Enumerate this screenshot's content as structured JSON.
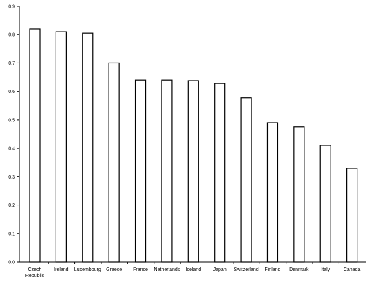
{
  "chart_data": {
    "type": "bar",
    "categories": [
      [
        "Czech",
        "Republic"
      ],
      [
        "Ireland"
      ],
      [
        "Luxembourg"
      ],
      [
        "Greece"
      ],
      [
        "France"
      ],
      [
        "Netherlands"
      ],
      [
        "Iceland"
      ],
      [
        "Japan"
      ],
      [
        "Switzerland"
      ],
      [
        "Finland"
      ],
      [
        "Denmark"
      ],
      [
        "Italy"
      ],
      [
        "Canada"
      ]
    ],
    "values": [
      0.82,
      0.81,
      0.805,
      0.7,
      0.64,
      0.64,
      0.638,
      0.628,
      0.578,
      0.49,
      0.476,
      0.41,
      0.33
    ],
    "title": "",
    "xlabel": "",
    "ylabel": "",
    "ylim": [
      0,
      0.9
    ],
    "yticks": [
      "0.0",
      "0.1",
      "0.2",
      "0.3",
      "0.4",
      "0.5",
      "0.6",
      "0.7",
      "0.8",
      "0.9"
    ],
    "grid": false,
    "bar_fill": "#ffffff",
    "bar_stroke": "#000000"
  }
}
